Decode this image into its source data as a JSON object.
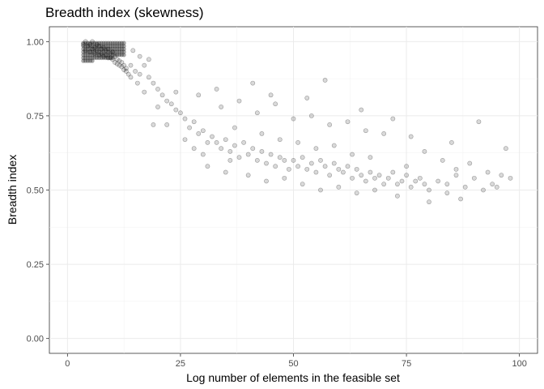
{
  "chart_data": {
    "type": "scatter",
    "title": "Breadth index (skewness)",
    "xlabel": "Log number of elements in the feasible set",
    "ylabel": "Breadth index",
    "xlim": [
      -4,
      104
    ],
    "ylim": [
      -0.05,
      1.05
    ],
    "x_ticks": [
      0,
      25,
      50,
      75,
      100
    ],
    "y_ticks": [
      0.0,
      0.25,
      0.5,
      0.75,
      1.0
    ],
    "x_tick_labels": [
      "0",
      "25",
      "50",
      "75",
      "100"
    ],
    "y_tick_labels": [
      "0.00",
      "0.25",
      "0.50",
      "0.75",
      "1.00"
    ],
    "grid": true,
    "point_color": "#000000",
    "point_alpha": 0.15,
    "series": [
      {
        "points": [
          [
            3.5,
            0.99
          ],
          [
            4,
            1.0
          ],
          [
            4.5,
            0.985
          ],
          [
            5,
            0.99
          ],
          [
            5.5,
            1.0
          ],
          [
            6,
            0.98
          ],
          [
            6.5,
            0.99
          ],
          [
            7,
            0.985
          ],
          [
            7.5,
            0.975
          ],
          [
            8,
            0.98
          ],
          [
            8.5,
            0.97
          ],
          [
            9,
            0.975
          ],
          [
            9.5,
            0.96
          ],
          [
            10,
            0.965
          ],
          [
            10.5,
            0.95
          ],
          [
            11,
            0.94
          ],
          [
            11.5,
            0.935
          ],
          [
            12,
            0.93
          ],
          [
            12.5,
            0.92
          ],
          [
            13,
            0.91
          ],
          [
            4,
            0.97
          ],
          [
            5,
            0.965
          ],
          [
            6,
            0.96
          ],
          [
            7,
            0.955
          ],
          [
            8,
            0.95
          ],
          [
            9,
            0.945
          ],
          [
            10,
            0.94
          ],
          [
            11,
            0.925
          ],
          [
            12,
            0.915
          ],
          [
            13,
            0.9
          ],
          [
            5.5,
            0.975
          ],
          [
            6.5,
            0.97
          ],
          [
            7.5,
            0.96
          ],
          [
            8.5,
            0.955
          ],
          [
            9.5,
            0.945
          ],
          [
            10.5,
            0.93
          ],
          [
            11.5,
            0.92
          ],
          [
            12.5,
            0.905
          ],
          [
            13.5,
            0.89
          ],
          [
            14,
            0.88
          ],
          [
            14,
            0.92
          ],
          [
            15,
            0.9
          ],
          [
            16,
            0.89
          ],
          [
            17,
            0.92
          ],
          [
            15.5,
            0.86
          ],
          [
            18,
            0.88
          ],
          [
            19,
            0.86
          ],
          [
            20,
            0.84
          ],
          [
            17,
            0.83
          ],
          [
            16,
            0.95
          ],
          [
            14.5,
            0.97
          ],
          [
            18,
            0.94
          ],
          [
            21,
            0.82
          ],
          [
            22,
            0.8
          ],
          [
            20,
            0.78
          ],
          [
            23,
            0.79
          ],
          [
            24,
            0.77
          ],
          [
            25,
            0.76
          ],
          [
            22,
            0.72
          ],
          [
            19,
            0.72
          ],
          [
            24,
            0.83
          ],
          [
            26,
            0.74
          ],
          [
            27,
            0.71
          ],
          [
            28,
            0.73
          ],
          [
            26,
            0.67
          ],
          [
            29,
            0.69
          ],
          [
            30,
            0.7
          ],
          [
            31,
            0.66
          ],
          [
            28,
            0.64
          ],
          [
            32,
            0.68
          ],
          [
            30,
            0.62
          ],
          [
            33,
            0.66
          ],
          [
            34,
            0.64
          ],
          [
            35,
            0.67
          ],
          [
            36,
            0.63
          ],
          [
            37,
            0.65
          ],
          [
            38,
            0.61
          ],
          [
            36,
            0.6
          ],
          [
            39,
            0.66
          ],
          [
            40,
            0.62
          ],
          [
            41,
            0.64
          ],
          [
            42,
            0.6
          ],
          [
            43,
            0.63
          ],
          [
            44,
            0.59
          ],
          [
            45,
            0.62
          ],
          [
            46,
            0.58
          ],
          [
            47,
            0.61
          ],
          [
            48,
            0.6
          ],
          [
            49,
            0.57
          ],
          [
            50,
            0.6
          ],
          [
            51,
            0.58
          ],
          [
            52,
            0.61
          ],
          [
            53,
            0.57
          ],
          [
            54,
            0.59
          ],
          [
            55,
            0.56
          ],
          [
            56,
            0.6
          ],
          [
            57,
            0.58
          ],
          [
            58,
            0.55
          ],
          [
            59,
            0.59
          ],
          [
            60,
            0.57
          ],
          [
            61,
            0.56
          ],
          [
            62,
            0.58
          ],
          [
            63,
            0.54
          ],
          [
            64,
            0.57
          ],
          [
            65,
            0.55
          ],
          [
            66,
            0.53
          ],
          [
            67,
            0.56
          ],
          [
            68,
            0.54
          ],
          [
            69,
            0.55
          ],
          [
            70,
            0.52
          ],
          [
            71,
            0.54
          ],
          [
            72,
            0.56
          ],
          [
            73,
            0.52
          ],
          [
            74,
            0.53
          ],
          [
            75,
            0.55
          ],
          [
            76,
            0.51
          ],
          [
            77,
            0.53
          ],
          [
            78,
            0.54
          ],
          [
            79,
            0.52
          ],
          [
            80,
            0.5
          ],
          [
            82,
            0.53
          ],
          [
            84,
            0.52
          ],
          [
            86,
            0.55
          ],
          [
            88,
            0.51
          ],
          [
            90,
            0.54
          ],
          [
            92,
            0.5
          ],
          [
            94,
            0.52
          ],
          [
            96,
            0.55
          ],
          [
            98,
            0.54
          ],
          [
            87,
            0.47
          ],
          [
            34,
            0.78
          ],
          [
            38,
            0.8
          ],
          [
            42,
            0.76
          ],
          [
            46,
            0.79
          ],
          [
            50,
            0.74
          ],
          [
            54,
            0.75
          ],
          [
            58,
            0.72
          ],
          [
            62,
            0.73
          ],
          [
            66,
            0.7
          ],
          [
            70,
            0.69
          ],
          [
            45,
            0.82
          ],
          [
            53,
            0.81
          ],
          [
            57,
            0.87
          ],
          [
            29,
            0.82
          ],
          [
            33,
            0.84
          ],
          [
            41,
            0.86
          ],
          [
            65,
            0.77
          ],
          [
            72,
            0.74
          ],
          [
            76,
            0.68
          ],
          [
            85,
            0.66
          ],
          [
            40,
            0.55
          ],
          [
            44,
            0.53
          ],
          [
            48,
            0.54
          ],
          [
            52,
            0.52
          ],
          [
            56,
            0.5
          ],
          [
            60,
            0.51
          ],
          [
            64,
            0.49
          ],
          [
            68,
            0.5
          ],
          [
            73,
            0.48
          ],
          [
            80,
            0.46
          ],
          [
            91,
            0.73
          ],
          [
            97,
            0.64
          ],
          [
            83,
            0.6
          ],
          [
            79,
            0.63
          ],
          [
            75,
            0.58
          ],
          [
            86,
            0.57
          ],
          [
            93,
            0.56
          ],
          [
            89,
            0.59
          ],
          [
            95,
            0.51
          ],
          [
            84,
            0.49
          ],
          [
            31,
            0.58
          ],
          [
            35,
            0.56
          ],
          [
            37,
            0.71
          ],
          [
            43,
            0.69
          ],
          [
            47,
            0.67
          ],
          [
            51,
            0.66
          ],
          [
            55,
            0.64
          ],
          [
            59,
            0.65
          ],
          [
            63,
            0.62
          ],
          [
            67,
            0.61
          ]
        ]
      }
    ]
  }
}
